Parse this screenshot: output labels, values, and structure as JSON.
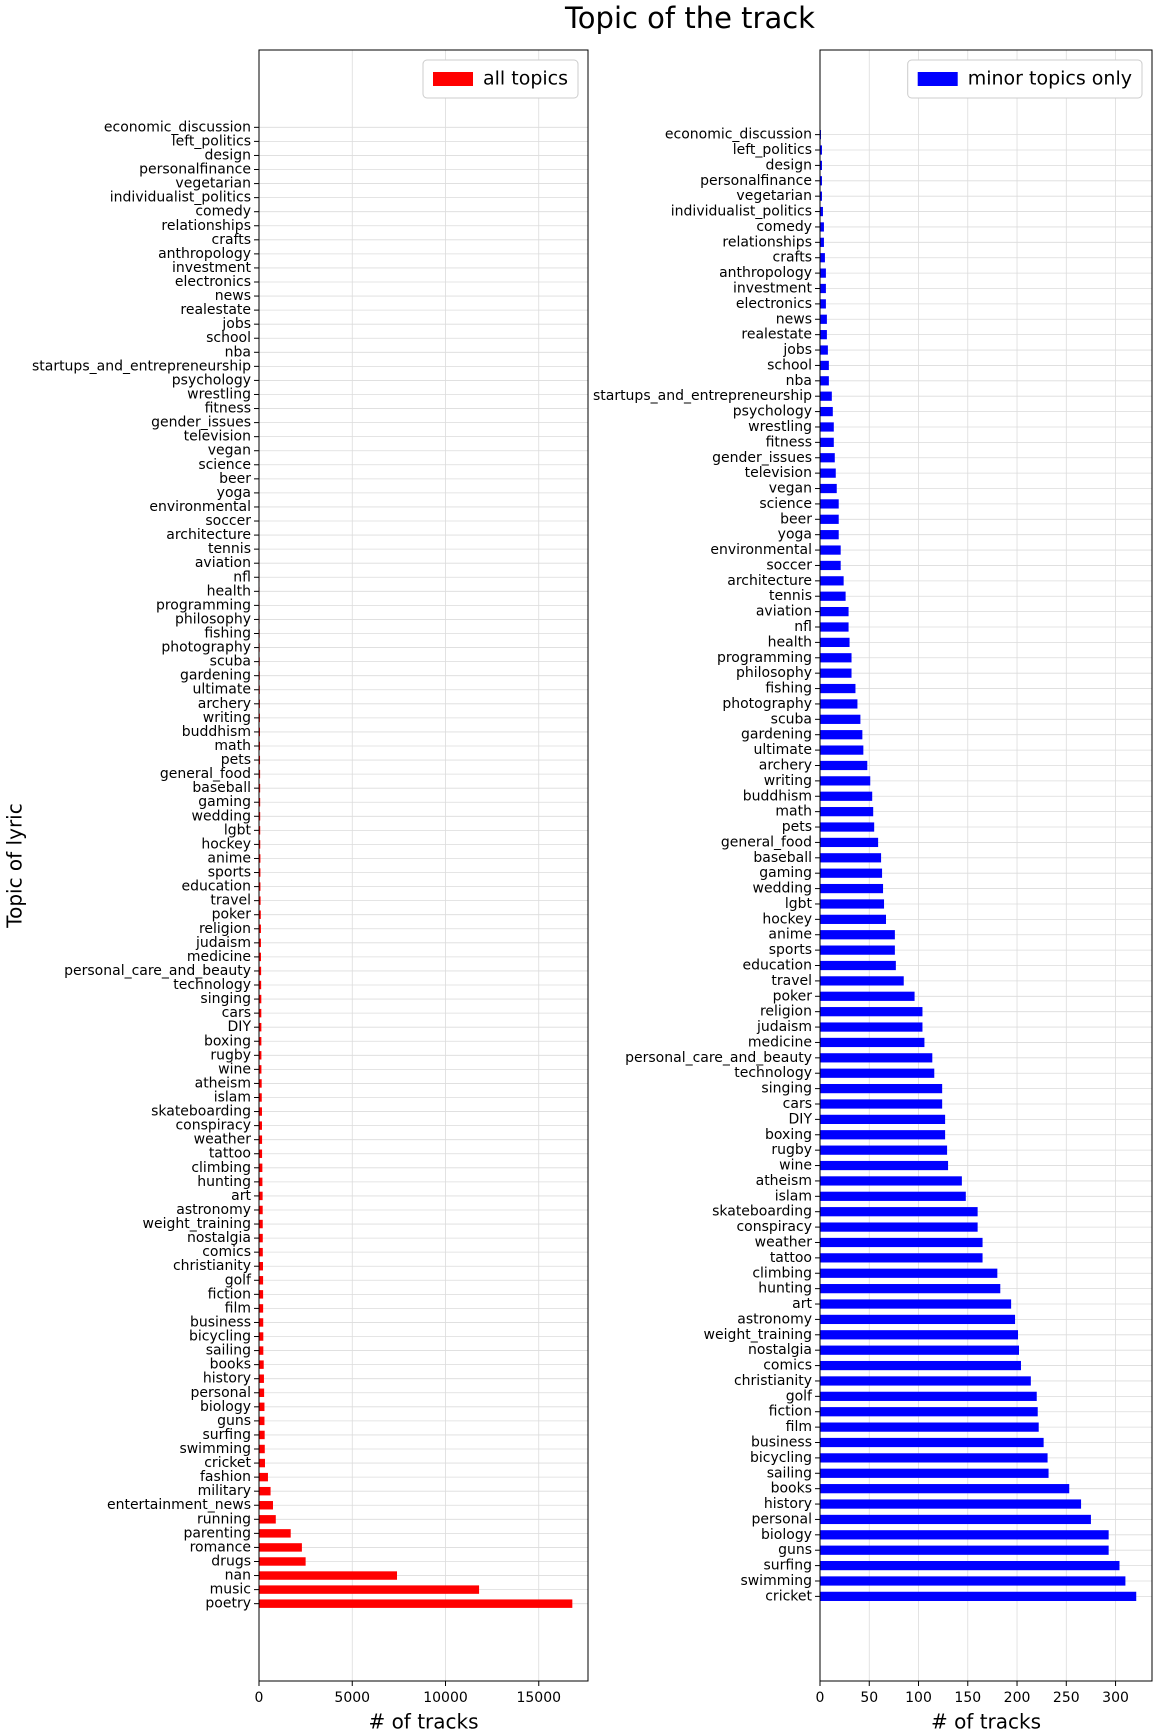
{
  "title": "Topic of the track",
  "chart_data": [
    {
      "type": "barh",
      "ylabel": "Topic of lyric",
      "xlabel": "# of tracks",
      "legend": "upper right",
      "grid": true,
      "xlim": [
        0,
        17640
      ],
      "xticks": [
        0,
        5000,
        10000,
        15000
      ],
      "categories": [
        "poetry",
        "music",
        "nan",
        "drugs",
        "romance",
        "parenting",
        "running",
        "entertainment_news",
        "military",
        "fashion",
        "cricket",
        "swimming",
        "surfing",
        "guns",
        "biology",
        "personal",
        "history",
        "books",
        "sailing",
        "bicycling",
        "business",
        "film",
        "fiction",
        "golf",
        "christianity",
        "comics",
        "nostalgia",
        "weight_training",
        "astronomy",
        "art",
        "hunting",
        "climbing",
        "tattoo",
        "weather",
        "conspiracy",
        "skateboarding",
        "islam",
        "atheism",
        "wine",
        "rugby",
        "boxing",
        "DIY",
        "cars",
        "singing",
        "technology",
        "personal_care_and_beauty",
        "medicine",
        "judaism",
        "religion",
        "poker",
        "travel",
        "education",
        "sports",
        "anime",
        "hockey",
        "lgbt",
        "wedding",
        "gaming",
        "baseball",
        "general_food",
        "pets",
        "math",
        "buddhism",
        "writing",
        "archery",
        "ultimate",
        "gardening",
        "scuba",
        "photography",
        "fishing",
        "philosophy",
        "programming",
        "health",
        "nfl",
        "aviation",
        "tennis",
        "architecture",
        "soccer",
        "environmental",
        "yoga",
        "beer",
        "science",
        "vegan",
        "television",
        "gender_issues",
        "fitness",
        "wrestling",
        "psychology",
        "startups_and_entrepreneurship",
        "nba",
        "school",
        "jobs",
        "realestate",
        "news",
        "electronics",
        "investment",
        "anthropology",
        "crafts",
        "relationships",
        "comedy",
        "individualist_politics",
        "vegetarian",
        "personalfinance",
        "design",
        "left_politics",
        "economic_discussion"
      ],
      "series": [
        {
          "name": "all topics",
          "color": "#ff0000",
          "values": [
            16800,
            11800,
            7400,
            2500,
            2300,
            1700,
            900,
            750,
            620,
            480,
            321,
            310,
            304,
            293,
            293,
            275,
            265,
            253,
            232,
            231,
            227,
            222,
            221,
            220,
            214,
            204,
            202,
            201,
            198,
            194,
            183,
            180,
            165,
            165,
            160,
            160,
            148,
            144,
            130,
            129,
            127,
            127,
            124,
            124,
            116,
            114,
            106,
            104,
            104,
            96,
            85,
            77,
            76,
            76,
            67,
            65,
            64,
            63,
            62,
            59,
            55,
            54,
            53,
            51,
            48,
            44,
            43,
            41,
            38,
            36,
            32,
            32,
            30,
            29,
            29,
            26,
            24,
            21,
            21,
            19,
            19,
            19,
            17,
            16,
            15,
            14,
            14,
            13,
            12,
            9,
            9,
            8,
            7,
            7,
            6,
            6,
            6,
            5,
            4,
            4,
            3,
            2,
            2,
            2,
            2,
            1
          ]
        }
      ]
    },
    {
      "type": "barh",
      "xlabel": "# of tracks",
      "legend": "upper right",
      "grid": true,
      "xlim": [
        0,
        337
      ],
      "xticks": [
        0,
        50,
        100,
        150,
        200,
        250,
        300
      ],
      "categories": [
        "cricket",
        "swimming",
        "surfing",
        "guns",
        "biology",
        "personal",
        "history",
        "books",
        "sailing",
        "bicycling",
        "business",
        "film",
        "fiction",
        "golf",
        "christianity",
        "comics",
        "nostalgia",
        "weight_training",
        "astronomy",
        "art",
        "hunting",
        "climbing",
        "tattoo",
        "weather",
        "conspiracy",
        "skateboarding",
        "islam",
        "atheism",
        "wine",
        "rugby",
        "boxing",
        "DIY",
        "cars",
        "singing",
        "technology",
        "personal_care_and_beauty",
        "medicine",
        "judaism",
        "religion",
        "poker",
        "travel",
        "education",
        "sports",
        "anime",
        "hockey",
        "lgbt",
        "wedding",
        "gaming",
        "baseball",
        "general_food",
        "pets",
        "math",
        "buddhism",
        "writing",
        "archery",
        "ultimate",
        "gardening",
        "scuba",
        "photography",
        "fishing",
        "philosophy",
        "programming",
        "health",
        "nfl",
        "aviation",
        "tennis",
        "architecture",
        "soccer",
        "environmental",
        "yoga",
        "beer",
        "science",
        "vegan",
        "television",
        "gender_issues",
        "fitness",
        "wrestling",
        "psychology",
        "startups_and_entrepreneurship",
        "nba",
        "school",
        "jobs",
        "realestate",
        "news",
        "electronics",
        "investment",
        "anthropology",
        "crafts",
        "relationships",
        "comedy",
        "individualist_politics",
        "vegetarian",
        "personalfinance",
        "design",
        "left_politics",
        "economic_discussion"
      ],
      "series": [
        {
          "name": "minor topics only",
          "color": "#0000ff",
          "values": [
            321,
            310,
            304,
            293,
            293,
            275,
            265,
            253,
            232,
            231,
            227,
            222,
            221,
            220,
            214,
            204,
            202,
            201,
            198,
            194,
            183,
            180,
            165,
            165,
            160,
            160,
            148,
            144,
            130,
            129,
            127,
            127,
            124,
            124,
            116,
            114,
            106,
            104,
            104,
            96,
            85,
            77,
            76,
            76,
            67,
            65,
            64,
            63,
            62,
            59,
            55,
            54,
            53,
            51,
            48,
            44,
            43,
            41,
            38,
            36,
            32,
            32,
            30,
            29,
            29,
            26,
            24,
            21,
            21,
            19,
            19,
            19,
            17,
            16,
            15,
            14,
            14,
            13,
            12,
            9,
            9,
            8,
            7,
            7,
            6,
            6,
            6,
            5,
            4,
            4,
            3,
            2,
            2,
            2,
            2,
            1
          ]
        }
      ]
    }
  ]
}
